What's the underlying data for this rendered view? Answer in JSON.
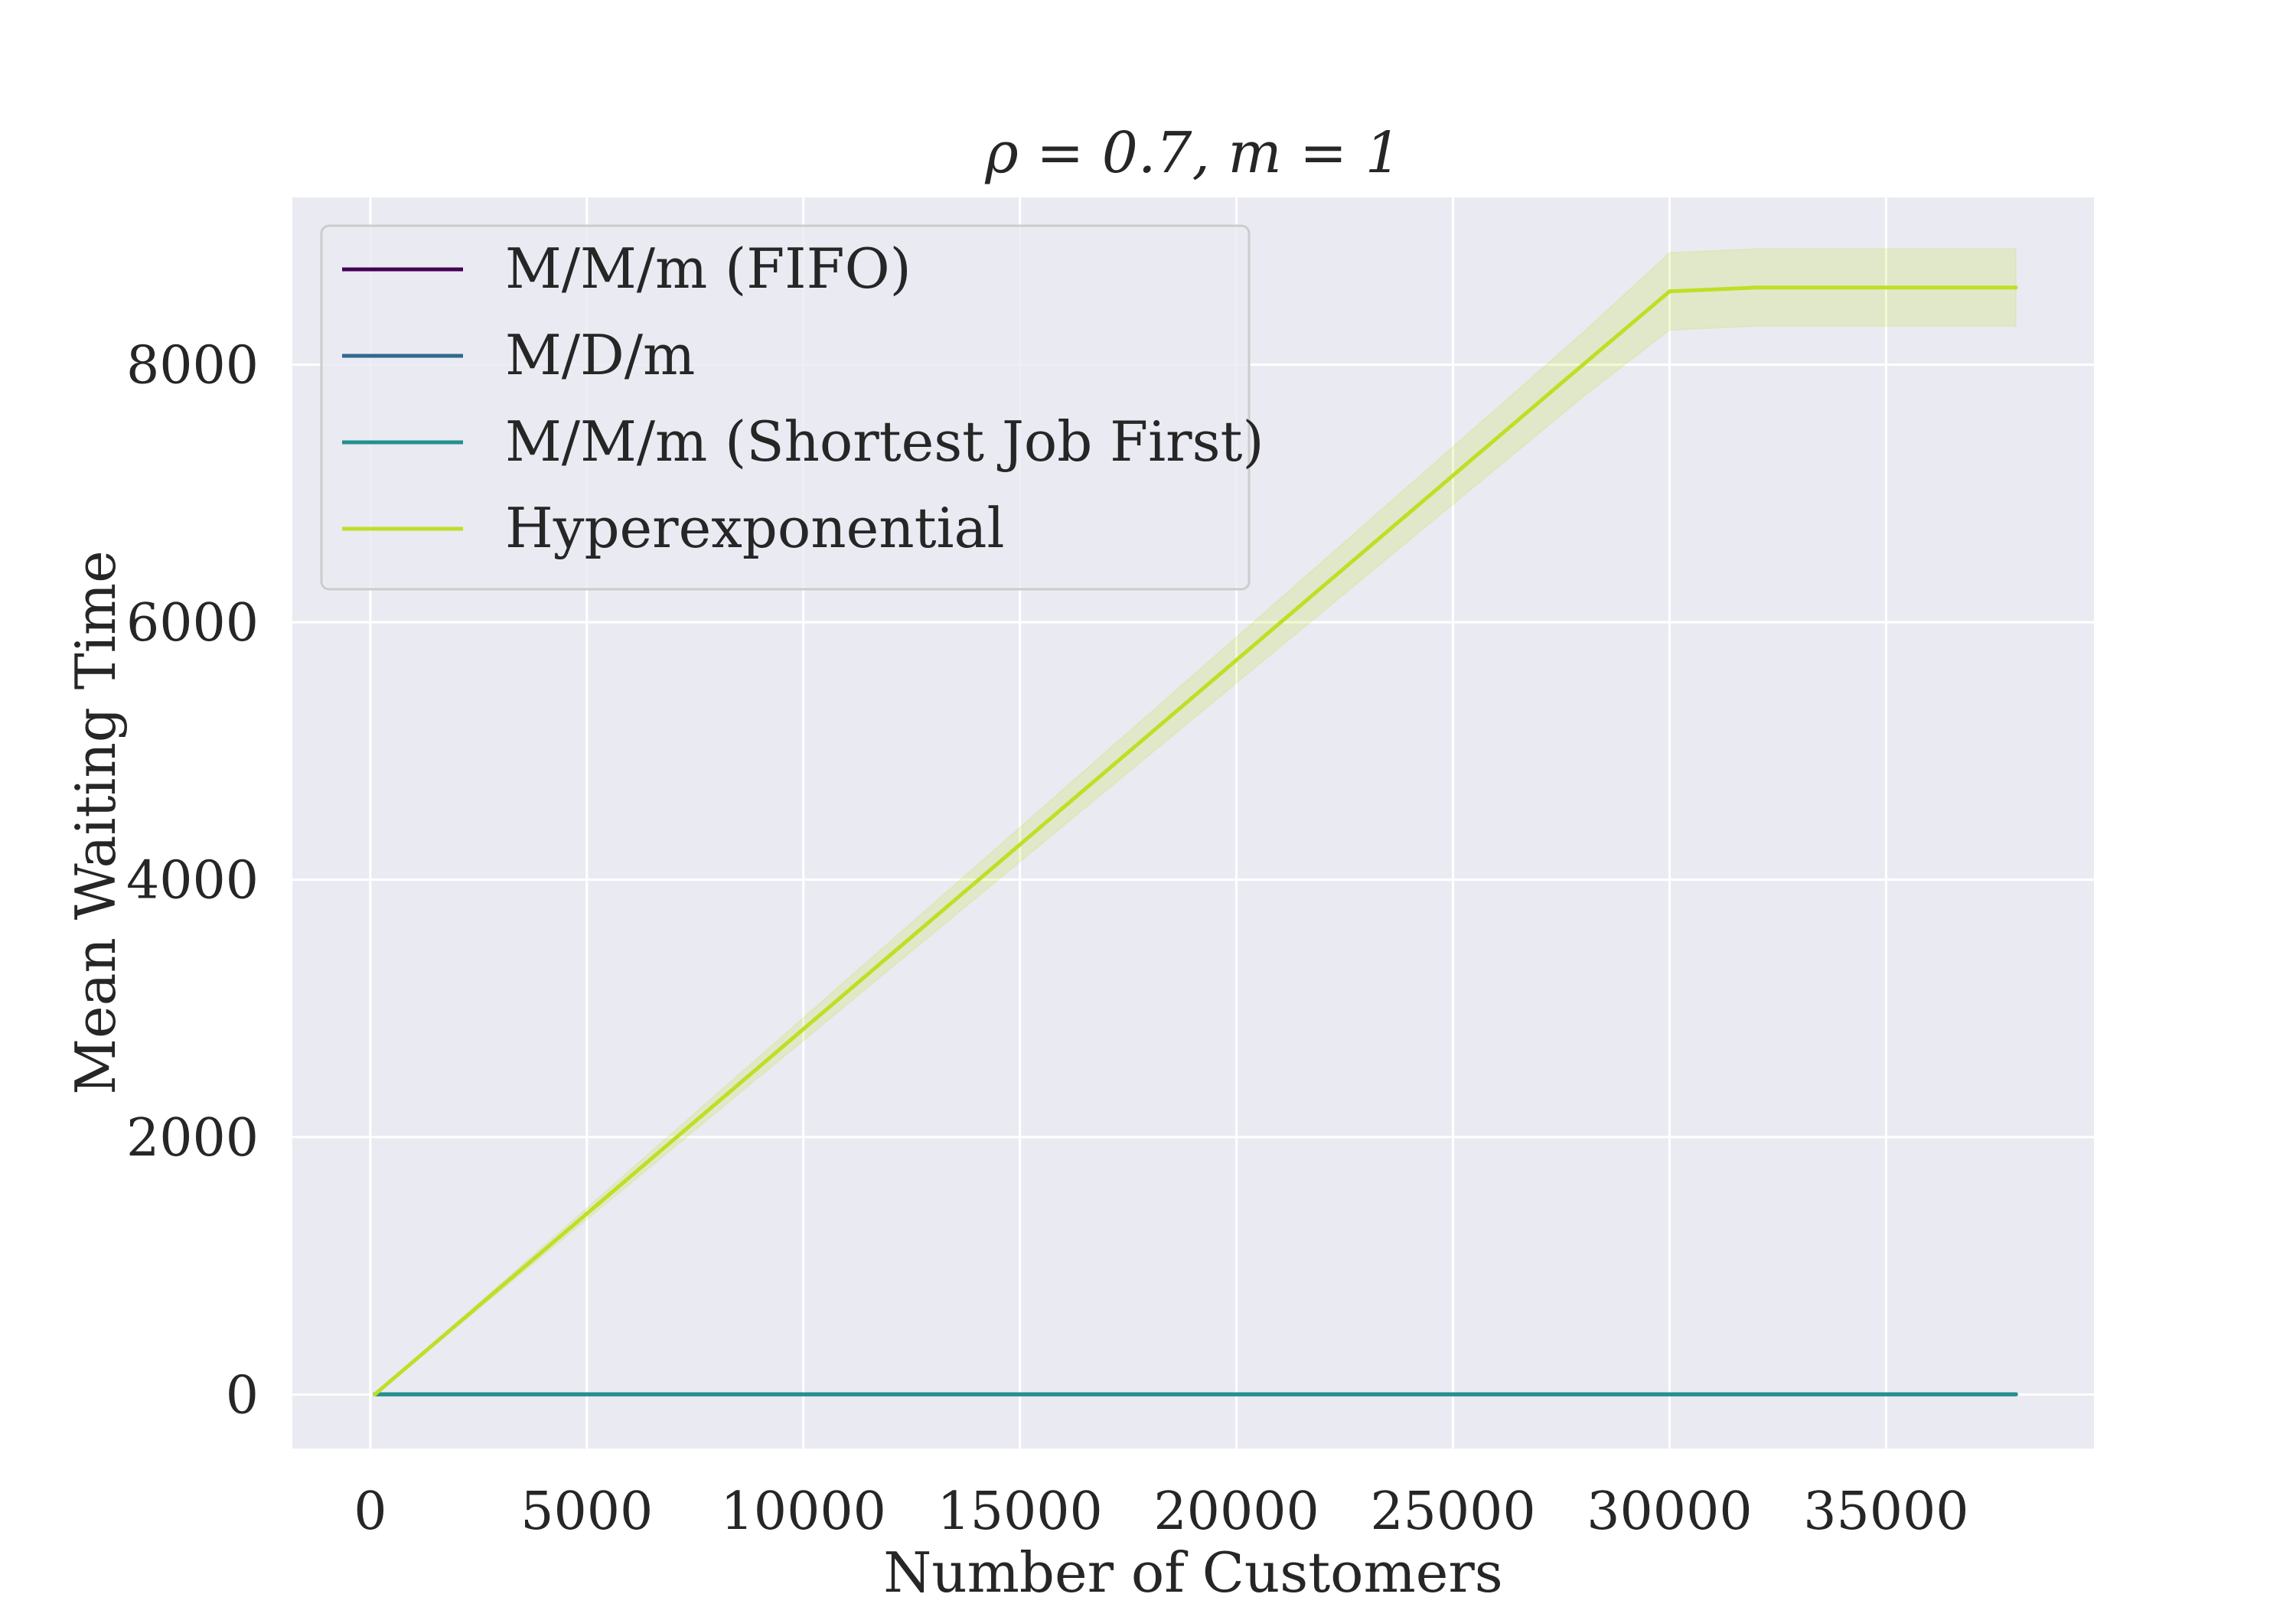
{
  "chart_data": {
    "type": "line",
    "title": "ρ = 0.7, m = 1",
    "xlabel": "Number of Customers",
    "ylabel": "Mean Waiting Time",
    "xlim": [
      -1800,
      39800
    ],
    "ylim": [
      -420,
      9300
    ],
    "xticks": [
      0,
      5000,
      10000,
      15000,
      20000,
      25000,
      30000,
      35000
    ],
    "yticks": [
      0,
      2000,
      4000,
      6000,
      8000
    ],
    "grid": true,
    "legend_position": "top-left",
    "series": [
      {
        "name": "M/M/m (FIFO)",
        "color": "#440154",
        "x": [
          100,
          38000
        ],
        "y": [
          2,
          2
        ]
      },
      {
        "name": "M/D/m",
        "color": "#31688e",
        "x": [
          100,
          38000
        ],
        "y": [
          1,
          1
        ]
      },
      {
        "name": "M/M/m (Shortest Job First)",
        "color": "#21918c",
        "x": [
          100,
          38000
        ],
        "y": [
          1,
          1
        ]
      },
      {
        "name": "Hyperexponential",
        "color": "#bddf26",
        "x": [
          100,
          28000,
          30000,
          32000,
          38000
        ],
        "y": [
          0,
          8000,
          8570,
          8600,
          8600
        ],
        "band_lower": [
          0,
          7750,
          8270,
          8300,
          8300
        ],
        "band_upper": [
          0,
          8250,
          8870,
          8900,
          8900
        ]
      }
    ]
  }
}
